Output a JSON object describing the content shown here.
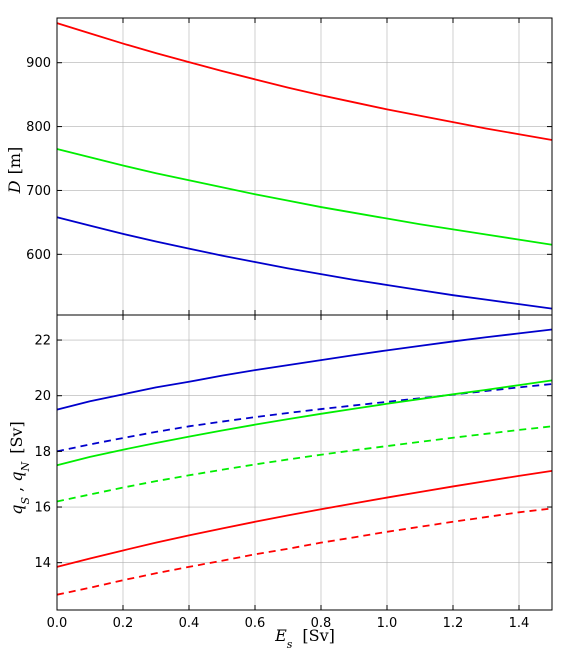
{
  "chart_data": [
    {
      "type": "line",
      "ylabel": "D  [m]",
      "xlim": [
        0.0,
        1.5
      ],
      "ylim": [
        505,
        970
      ],
      "yticks": [
        600,
        700,
        800,
        900
      ],
      "grid": true,
      "series": [
        {
          "color": "#ff0000",
          "style": "solid",
          "x": [
            0.0,
            0.1,
            0.2,
            0.3,
            0.4,
            0.5,
            0.6,
            0.7,
            0.8,
            0.9,
            1.0,
            1.1,
            1.2,
            1.3,
            1.4,
            1.5
          ],
          "y": [
            962,
            946,
            930,
            915,
            901,
            887,
            874,
            861,
            849,
            838,
            827,
            817,
            807,
            797,
            788,
            779
          ]
        },
        {
          "color": "#00ee00",
          "style": "solid",
          "x": [
            0.0,
            0.1,
            0.2,
            0.3,
            0.4,
            0.5,
            0.6,
            0.7,
            0.8,
            0.9,
            1.0,
            1.1,
            1.2,
            1.3,
            1.4,
            1.5
          ],
          "y": [
            765,
            752,
            739,
            727,
            716,
            705,
            694,
            684,
            674,
            665,
            656,
            647,
            639,
            631,
            623,
            615
          ]
        },
        {
          "color": "#0000cc",
          "style": "solid",
          "x": [
            0.0,
            0.1,
            0.2,
            0.3,
            0.4,
            0.5,
            0.6,
            0.7,
            0.8,
            0.9,
            1.0,
            1.1,
            1.2,
            1.3,
            1.4,
            1.5
          ],
          "y": [
            658,
            645,
            632,
            620,
            609,
            598,
            588,
            578,
            569,
            560,
            552,
            544,
            536,
            529,
            522,
            515
          ]
        }
      ]
    },
    {
      "type": "line",
      "xlabel": "E_s  [Sv]",
      "ylabel": "q_S , q_N  [Sv]",
      "xlim": [
        0.0,
        1.5
      ],
      "xticks": [
        0.0,
        0.2,
        0.4,
        0.6,
        0.8,
        1.0,
        1.2,
        1.4
      ],
      "xtick_labels": [
        "0.0",
        "0.2",
        "0.4",
        "0.6",
        "0.8",
        "1.0",
        "1.2",
        "1.4"
      ],
      "ylim": [
        12.3,
        22.9
      ],
      "yticks": [
        14,
        16,
        18,
        20,
        22
      ],
      "grid": true,
      "series": [
        {
          "color": "#0000cc",
          "style": "solid",
          "x": [
            0.0,
            0.1,
            0.2,
            0.3,
            0.4,
            0.5,
            0.6,
            0.7,
            0.8,
            0.9,
            1.0,
            1.1,
            1.2,
            1.3,
            1.4,
            1.5
          ],
          "y": [
            19.5,
            19.8,
            20.05,
            20.3,
            20.5,
            20.72,
            20.92,
            21.1,
            21.28,
            21.46,
            21.63,
            21.79,
            21.95,
            22.1,
            22.24,
            22.38
          ]
        },
        {
          "color": "#0000cc",
          "style": "dashed",
          "x": [
            0.0,
            0.1,
            0.2,
            0.3,
            0.4,
            0.5,
            0.6,
            0.7,
            0.8,
            0.9,
            1.0,
            1.1,
            1.2,
            1.3,
            1.4,
            1.5
          ],
          "y": [
            18.0,
            18.25,
            18.48,
            18.7,
            18.9,
            19.07,
            19.23,
            19.38,
            19.52,
            19.65,
            19.78,
            19.91,
            20.04,
            20.17,
            20.3,
            20.42
          ]
        },
        {
          "color": "#00ee00",
          "style": "solid",
          "x": [
            0.0,
            0.1,
            0.2,
            0.3,
            0.4,
            0.5,
            0.6,
            0.7,
            0.8,
            0.9,
            1.0,
            1.1,
            1.2,
            1.3,
            1.4,
            1.5
          ],
          "y": [
            17.5,
            17.8,
            18.06,
            18.3,
            18.53,
            18.75,
            18.96,
            19.16,
            19.35,
            19.53,
            19.71,
            19.88,
            20.05,
            20.21,
            20.38,
            20.55
          ]
        },
        {
          "color": "#00ee00",
          "style": "dashed",
          "x": [
            0.0,
            0.1,
            0.2,
            0.3,
            0.4,
            0.5,
            0.6,
            0.7,
            0.8,
            0.9,
            1.0,
            1.1,
            1.2,
            1.3,
            1.4,
            1.5
          ],
          "y": [
            16.2,
            16.45,
            16.7,
            16.93,
            17.14,
            17.34,
            17.53,
            17.71,
            17.88,
            18.04,
            18.19,
            18.34,
            18.49,
            18.63,
            18.77,
            18.9
          ]
        },
        {
          "color": "#ff0000",
          "style": "solid",
          "x": [
            0.0,
            0.1,
            0.2,
            0.3,
            0.4,
            0.5,
            0.6,
            0.7,
            0.8,
            0.9,
            1.0,
            1.1,
            1.2,
            1.3,
            1.4,
            1.5
          ],
          "y": [
            13.85,
            14.15,
            14.44,
            14.72,
            14.98,
            15.23,
            15.47,
            15.7,
            15.92,
            16.13,
            16.34,
            16.54,
            16.74,
            16.93,
            17.12,
            17.3
          ]
        },
        {
          "color": "#ff0000",
          "style": "dashed",
          "x": [
            0.0,
            0.1,
            0.2,
            0.3,
            0.4,
            0.5,
            0.6,
            0.7,
            0.8,
            0.9,
            1.0,
            1.1,
            1.2,
            1.3,
            1.4,
            1.5
          ],
          "y": [
            12.85,
            13.1,
            13.37,
            13.62,
            13.85,
            14.07,
            14.3,
            14.5,
            14.72,
            14.91,
            15.11,
            15.29,
            15.47,
            15.64,
            15.81,
            15.95
          ]
        }
      ]
    }
  ]
}
